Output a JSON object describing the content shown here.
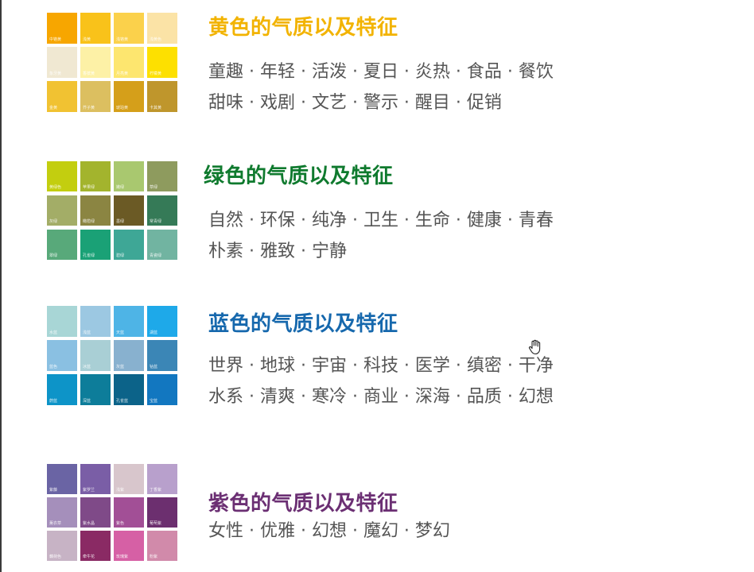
{
  "sections": [
    {
      "id": "yellow",
      "title": "黄色的气质以及特征",
      "title_color": "#f2b300",
      "keyword_lines": [
        "童趣 · 年轻 · 活泼 · 夏日 · 炎热 · 食品 · 餐饮",
        "甜味 · 戏剧 · 文艺 · 警示 · 醒目 · 促销"
      ],
      "swatches": [
        {
          "color": "#f7a600",
          "label": "中铬黄"
        },
        {
          "color": "#f9c21a",
          "label": "浅黄"
        },
        {
          "color": "#fbd14b",
          "label": "浅铬黄"
        },
        {
          "color": "#fbe3a6",
          "label": "浅黄色"
        },
        {
          "color": "#f0e8d2",
          "label": "象牙黄"
        },
        {
          "color": "#fdf1a6",
          "label": "香槟黄"
        },
        {
          "color": "#fde66f",
          "label": "月亮黄"
        },
        {
          "color": "#fde000",
          "label": "柠檬黄"
        },
        {
          "color": "#f1c232",
          "label": "金黄"
        },
        {
          "color": "#dcbf60",
          "label": "芥子黄"
        },
        {
          "color": "#d59f1a",
          "label": "琥珀黄"
        },
        {
          "color": "#bf962c",
          "label": "卡其黄"
        }
      ]
    },
    {
      "id": "green",
      "title": "绿色的气质以及特征",
      "title_color": "#0f7a2e",
      "keyword_lines": [
        "自然 · 环保 · 纯净 · 卫生 · 生命 · 健康 · 青春",
        "朴素 · 雅致 · 宁静"
      ],
      "swatches": [
        {
          "color": "#c3ce0f",
          "label": "黄绿色"
        },
        {
          "color": "#a3b42d",
          "label": "苹果绿"
        },
        {
          "color": "#a9c86f",
          "label": "嫩绿"
        },
        {
          "color": "#8e9b5e",
          "label": "草绿"
        },
        {
          "color": "#a3ad67",
          "label": "灰绿"
        },
        {
          "color": "#8b8542",
          "label": "橄榄绿"
        },
        {
          "color": "#6b5a25",
          "label": "墨绿"
        },
        {
          "color": "#357a57",
          "label": "常青绿"
        },
        {
          "color": "#58a97a",
          "label": "翠绿"
        },
        {
          "color": "#1aa176",
          "label": "孔雀绿"
        },
        {
          "color": "#3ea796",
          "label": "碧绿"
        },
        {
          "color": "#71b4a1",
          "label": "青瓷绿"
        }
      ]
    },
    {
      "id": "blue",
      "title": "蓝色的气质以及特征",
      "title_color": "#1668ad",
      "keyword_lines": [
        "世界 · 地球 · 宇宙 · 科技 · 医学 · 缜密 · 干净",
        "水系 · 清爽 · 寒冷 · 商业 · 深海 · 品质 · 幻想"
      ],
      "swatches": [
        {
          "color": "#a8d6d6",
          "label": "水蓝"
        },
        {
          "color": "#9cc8e2",
          "label": "浅蓝"
        },
        {
          "color": "#4eb4e6",
          "label": "天蓝"
        },
        {
          "color": "#1ea9e9",
          "label": "湖蓝"
        },
        {
          "color": "#8ac0e2",
          "label": "蓝色"
        },
        {
          "color": "#a9cfd5",
          "label": "冰蓝"
        },
        {
          "color": "#88b1cf",
          "label": "灰蓝"
        },
        {
          "color": "#3b86b6",
          "label": "钴蓝"
        },
        {
          "color": "#0d94c8",
          "label": "蔚蓝"
        },
        {
          "color": "#0d7d9a",
          "label": "深蓝"
        },
        {
          "color": "#0c6389",
          "label": "孔雀蓝"
        },
        {
          "color": "#1277c0",
          "label": "宝蓝"
        }
      ]
    },
    {
      "id": "purple",
      "title": "紫色的气质以及特征",
      "title_color": "#6b2f73",
      "keyword_lines": [
        "女性 · 优雅 · 幻想 · 魔幻 · 梦幻"
      ],
      "swatches": [
        {
          "color": "#6a64a4",
          "label": "紫藤"
        },
        {
          "color": "#7a5ea6",
          "label": "紫罗兰"
        },
        {
          "color": "#d8c6cc",
          "label": "浅紫"
        },
        {
          "color": "#b8a0cc",
          "label": "丁香紫"
        },
        {
          "color": "#a58fbb",
          "label": "薰衣草"
        },
        {
          "color": "#7f4a88",
          "label": "紫水晶"
        },
        {
          "color": "#a24f96",
          "label": "紫色"
        },
        {
          "color": "#6c2f6f",
          "label": "葡萄紫"
        },
        {
          "color": "#c7b3c5",
          "label": "藕荷色"
        },
        {
          "color": "#8a2a64",
          "label": "牵牛花"
        },
        {
          "color": "#d660a5",
          "label": "玫瑰紫"
        },
        {
          "color": "#d18aaa",
          "label": "粉紫"
        }
      ]
    }
  ]
}
